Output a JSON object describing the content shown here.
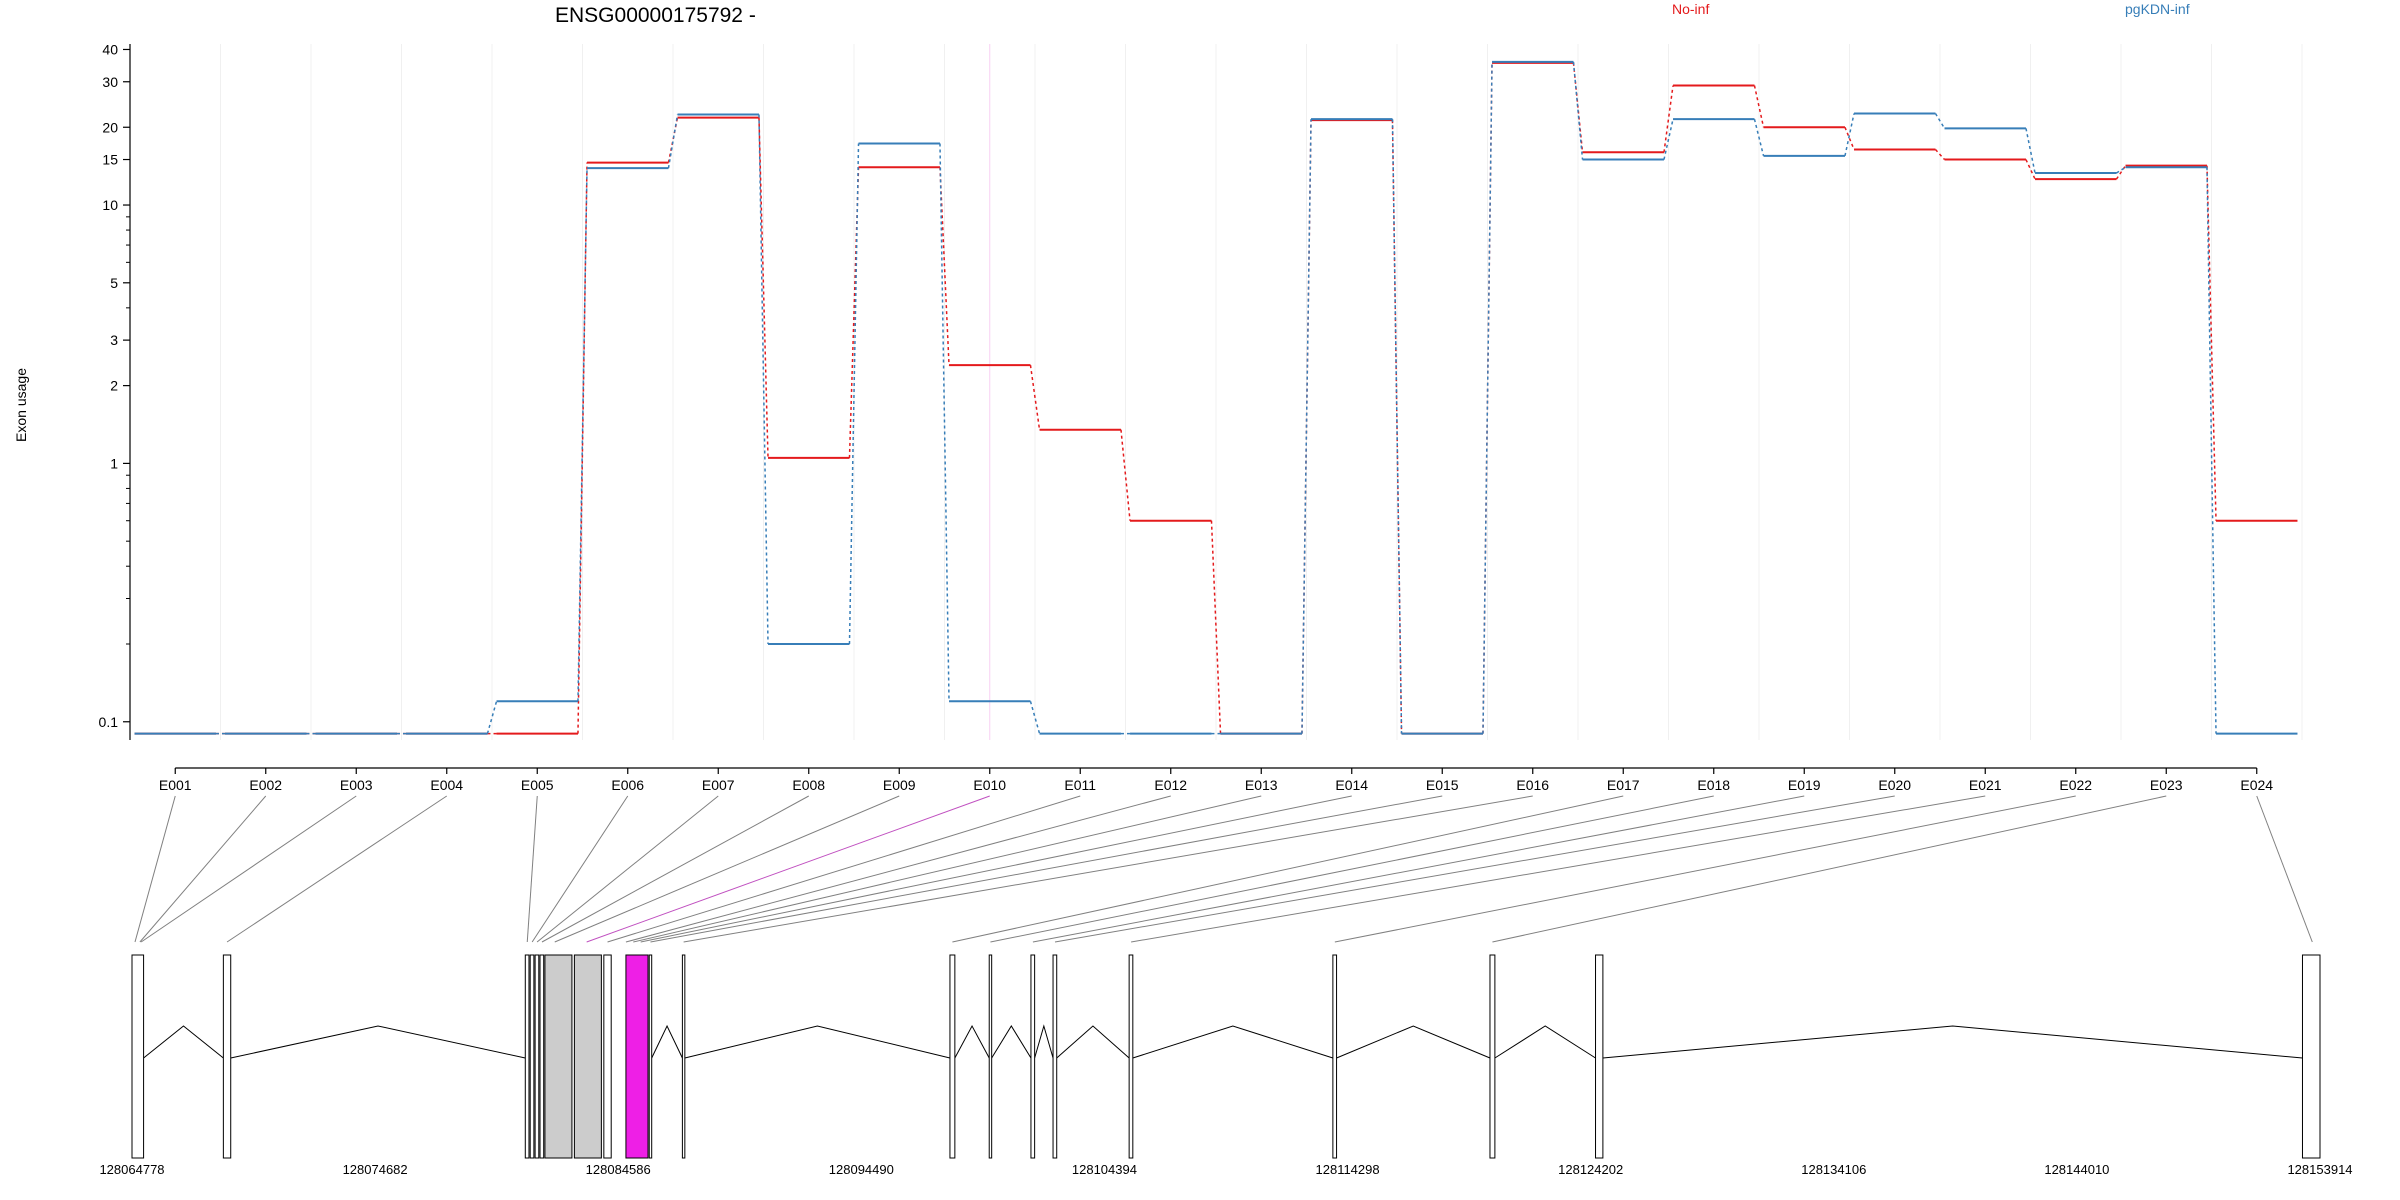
{
  "chart_data": {
    "type": "line",
    "title": "ENSG00000175792 -",
    "ylabel": "Exon usage",
    "xlabel": "",
    "y_scale": "log",
    "ylim": [
      0.085,
      42
    ],
    "y_ticks": [
      0.1,
      1,
      2,
      3,
      5,
      10,
      15,
      20,
      30,
      40
    ],
    "legend_position": "top",
    "categories": [
      "E001",
      "E002",
      "E003",
      "E004",
      "E005",
      "E006",
      "E007",
      "E008",
      "E009",
      "E010",
      "E011",
      "E012",
      "E013",
      "E014",
      "E015",
      "E016",
      "E017",
      "E018",
      "E019",
      "E020",
      "E021",
      "E022",
      "E023",
      "E024"
    ],
    "highlighted_exon": "E010",
    "series": [
      {
        "name": "No-inf",
        "color": "#e41a1c",
        "values": [
          0.09,
          0.09,
          0.09,
          0.09,
          0.09,
          14.6,
          21.8,
          1.05,
          14.0,
          2.4,
          1.35,
          0.6,
          0.09,
          21.3,
          0.09,
          35.5,
          16.0,
          29.0,
          20.0,
          16.4,
          15.0,
          12.6,
          14.2,
          0.6
        ]
      },
      {
        "name": "pgKDN-inf",
        "color": "#377eb8",
        "values": [
          0.09,
          0.09,
          0.09,
          0.09,
          0.12,
          13.9,
          22.4,
          0.2,
          17.3,
          0.12,
          0.09,
          0.09,
          0.09,
          21.5,
          0.09,
          35.8,
          15.0,
          21.5,
          15.5,
          22.6,
          19.8,
          13.3,
          14.0,
          0.09
        ]
      }
    ],
    "gene_model": {
      "coordinate_ticks": [
        "128064778",
        "128074682",
        "128084586",
        "128094490",
        "128104394",
        "128114298",
        "128124202",
        "128134106",
        "128144010",
        "128153914"
      ],
      "exons_genomic": [
        [
          128064778,
          128065250
        ],
        [
          128068500,
          128068800
        ],
        [
          128080800,
          128080950
        ],
        [
          128081000,
          128081150
        ],
        [
          128081200,
          128081350
        ],
        [
          128081400,
          128081550
        ],
        [
          128081600,
          128082700
        ],
        [
          128082800,
          128083900
        ],
        [
          128084000,
          128084300
        ],
        [
          128084900,
          128085800
        ],
        [
          128085850,
          128085950
        ],
        [
          128087200,
          128087300
        ],
        [
          128098100,
          128098300
        ],
        [
          128099700,
          128099800
        ],
        [
          128101400,
          128101550
        ],
        [
          128102300,
          128102450
        ],
        [
          128105400,
          128105550
        ],
        [
          128113700,
          128113850
        ],
        [
          128120100,
          128120300
        ],
        [
          128124400,
          128124700
        ],
        [
          128153200,
          128153914
        ]
      ],
      "intron_segments": [
        [
          128065250,
          128068500
        ],
        [
          128068800,
          128080800
        ],
        [
          128085950,
          128087200
        ],
        [
          128087300,
          128098100
        ],
        [
          128098300,
          128099700
        ],
        [
          128099800,
          128101400
        ],
        [
          128101550,
          128102300
        ],
        [
          128102450,
          128105400
        ],
        [
          128105550,
          128113700
        ],
        [
          128113850,
          128120100
        ],
        [
          128120300,
          128124400
        ],
        [
          128124700,
          128153200
        ]
      ],
      "exon_links": [
        128064900,
        128065100,
        128065150,
        128068650,
        128080880,
        128081080,
        128081280,
        128081480,
        128082000,
        128083300,
        128084150,
        128084900,
        128085200,
        128085500,
        128085900,
        128087250,
        128098200,
        128099750,
        128101480,
        128102380,
        128105480,
        128113780,
        128120200,
        128153600
      ]
    }
  },
  "colors": {
    "accent_red": "#e41a1c",
    "accent_blue": "#377eb8",
    "highlight": "#ee1fe6",
    "gray": "#cccccc"
  }
}
